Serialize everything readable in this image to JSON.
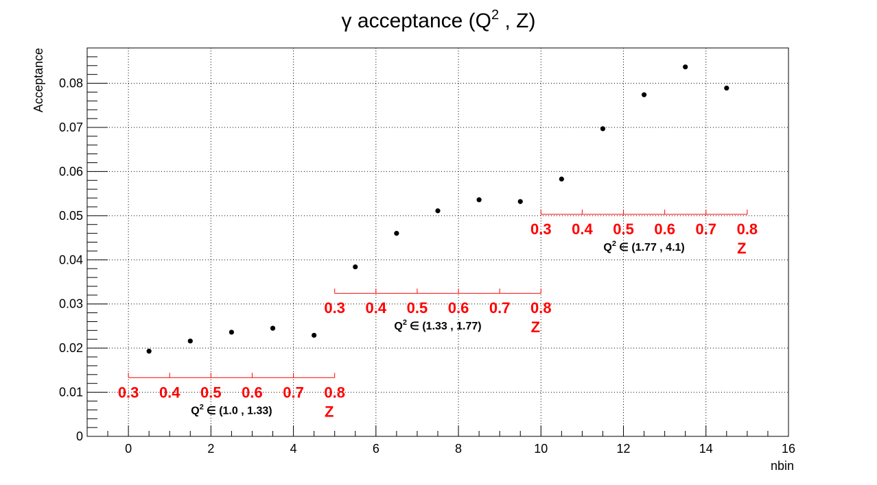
{
  "chart_data": {
    "type": "scatter",
    "title_main": "γ acceptance (Q",
    "title_sup": "2",
    "title_tail": " , Z)",
    "xlabel": "nbin",
    "ylabel": "Acceptance",
    "xlim": [
      -1,
      16
    ],
    "ylim": [
      0,
      0.088
    ],
    "xticks": [
      "0",
      "2",
      "4",
      "6",
      "8",
      "10",
      "12",
      "14",
      "16"
    ],
    "yticks": [
      "0",
      "0.01",
      "0.02",
      "0.03",
      "0.04",
      "0.05",
      "0.06",
      "0.07",
      "0.08"
    ],
    "grid": true,
    "points": {
      "x": [
        0.5,
        1.5,
        2.5,
        3.5,
        4.5,
        5.5,
        6.5,
        7.5,
        8.5,
        9.5,
        10.5,
        11.5,
        12.5,
        13.5,
        14.5
      ],
      "y": [
        0.0193,
        0.0216,
        0.0236,
        0.0245,
        0.0229,
        0.0384,
        0.046,
        0.0511,
        0.0536,
        0.0532,
        0.0583,
        0.0697,
        0.0774,
        0.0837,
        0.0789
      ]
    },
    "z_axes": [
      {
        "x_start": 0,
        "x_end": 5,
        "y": 0.0133,
        "labels": [
          "0.3",
          "0.4",
          "0.5",
          "0.6",
          "0.7",
          "0.8"
        ],
        "z": "Z",
        "q2_prefix": "Q",
        "q2_sup": "2",
        "q2_range": "∈ (1.0 , 1.33)"
      },
      {
        "x_start": 5,
        "x_end": 10,
        "y": 0.0324,
        "labels": [
          "0.3",
          "0.4",
          "0.5",
          "0.6",
          "0.7",
          "0.8"
        ],
        "z": "Z",
        "q2_prefix": "Q",
        "q2_sup": "2",
        "q2_range": "∈ (1.33 , 1.77)"
      },
      {
        "x_start": 10,
        "x_end": 15,
        "y": 0.0503,
        "labels": [
          "0.3",
          "0.4",
          "0.5",
          "0.6",
          "0.7",
          "0.8"
        ],
        "z": "Z",
        "q2_prefix": "Q",
        "q2_sup": "2",
        "q2_range": "∈ (1.77 , 4.1)"
      }
    ],
    "colors": {
      "points": "#000000",
      "z_axis": "#ff0000",
      "grid": "#000000"
    }
  }
}
